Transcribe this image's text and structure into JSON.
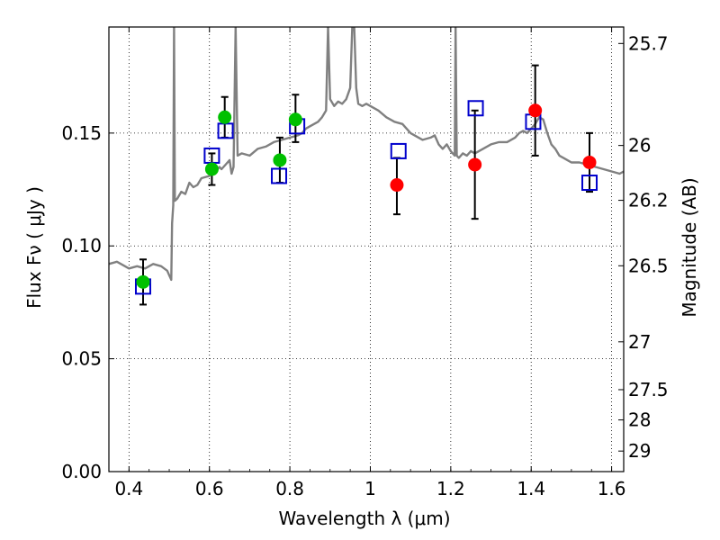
{
  "chart_data": {
    "type": "scatter",
    "title": "",
    "xlabel": "Wavelength  λ (μm)",
    "ylabel": "Flux  Fν  ( μJy )",
    "y2label": "Magnitude (AB)",
    "xlim": [
      0.35,
      1.63
    ],
    "ylim": [
      0.0,
      0.197
    ],
    "grid": true,
    "x_ticks": [
      0.4,
      0.6,
      0.8,
      1.0,
      1.2,
      1.4,
      1.6
    ],
    "x_tick_labels": [
      "0.4",
      "0.6",
      "0.8",
      "1",
      "1.2",
      "1.4",
      "1.6"
    ],
    "y_ticks": [
      0.0,
      0.05,
      0.1,
      0.15
    ],
    "y_tick_labels": [
      "0.00",
      "0.05",
      "0.10",
      "0.15"
    ],
    "y2_ticks": [
      {
        "label": "25.7",
        "flux": 0.1897
      },
      {
        "label": "26",
        "flux": 0.1445
      },
      {
        "label": "26.2",
        "flux": 0.1202
      },
      {
        "label": "26.5",
        "flux": 0.0912
      },
      {
        "label": "27",
        "flux": 0.0575
      },
      {
        "label": "27.5",
        "flux": 0.0363
      },
      {
        "label": "28",
        "flux": 0.0229
      },
      {
        "label": "29",
        "flux": 0.0091
      }
    ],
    "series": [
      {
        "marker": "circle",
        "color": "#00c000",
        "points": [
          {
            "x": 0.435,
            "y": 0.084,
            "yerr_low": 0.074,
            "yerr_high": 0.094
          },
          {
            "x": 0.606,
            "y": 0.134,
            "yerr_low": 0.127,
            "yerr_high": 0.141
          },
          {
            "x": 0.638,
            "y": 0.157,
            "yerr_low": 0.148,
            "yerr_high": 0.166
          },
          {
            "x": 0.775,
            "y": 0.138,
            "yerr_low": 0.128,
            "yerr_high": 0.148
          },
          {
            "x": 0.814,
            "y": 0.156,
            "yerr_low": 0.146,
            "yerr_high": 0.167
          }
        ]
      },
      {
        "marker": "circle",
        "color": "#ff0000",
        "points": [
          {
            "x": 1.066,
            "y": 0.127,
            "yerr_low": 0.114,
            "yerr_high": 0.139
          },
          {
            "x": 1.26,
            "y": 0.136,
            "yerr_low": 0.112,
            "yerr_high": 0.16
          },
          {
            "x": 1.41,
            "y": 0.16,
            "yerr_low": 0.14,
            "yerr_high": 0.18
          },
          {
            "x": 1.545,
            "y": 0.137,
            "yerr_low": 0.124,
            "yerr_high": 0.15
          }
        ]
      },
      {
        "marker": "open-square",
        "color": "#0000cc",
        "points": [
          {
            "x": 0.435,
            "y": 0.082
          },
          {
            "x": 0.606,
            "y": 0.14
          },
          {
            "x": 0.64,
            "y": 0.151
          },
          {
            "x": 0.773,
            "y": 0.131
          },
          {
            "x": 0.818,
            "y": 0.153
          },
          {
            "x": 1.07,
            "y": 0.142
          },
          {
            "x": 1.262,
            "y": 0.161
          },
          {
            "x": 1.405,
            "y": 0.155
          },
          {
            "x": 1.545,
            "y": 0.128
          }
        ]
      },
      {
        "marker": "line",
        "color": "#808080",
        "points": [
          [
            0.35,
            0.092
          ],
          [
            0.37,
            0.093
          ],
          [
            0.38,
            0.092
          ],
          [
            0.4,
            0.09
          ],
          [
            0.42,
            0.091
          ],
          [
            0.44,
            0.09
          ],
          [
            0.46,
            0.092
          ],
          [
            0.48,
            0.091
          ],
          [
            0.495,
            0.089
          ],
          [
            0.5,
            0.087
          ],
          [
            0.505,
            0.085
          ],
          [
            0.507,
            0.11
          ],
          [
            0.51,
            0.118
          ],
          [
            0.512,
            0.197
          ],
          [
            0.514,
            0.12
          ],
          [
            0.52,
            0.121
          ],
          [
            0.53,
            0.124
          ],
          [
            0.54,
            0.123
          ],
          [
            0.55,
            0.128
          ],
          [
            0.56,
            0.126
          ],
          [
            0.57,
            0.127
          ],
          [
            0.58,
            0.13
          ],
          [
            0.6,
            0.131
          ],
          [
            0.61,
            0.133
          ],
          [
            0.62,
            0.134
          ],
          [
            0.625,
            0.135
          ],
          [
            0.63,
            0.134
          ],
          [
            0.64,
            0.136
          ],
          [
            0.65,
            0.138
          ],
          [
            0.655,
            0.132
          ],
          [
            0.66,
            0.135
          ],
          [
            0.665,
            0.197
          ],
          [
            0.67,
            0.14
          ],
          [
            0.68,
            0.141
          ],
          [
            0.7,
            0.14
          ],
          [
            0.72,
            0.143
          ],
          [
            0.74,
            0.144
          ],
          [
            0.75,
            0.145
          ],
          [
            0.76,
            0.146
          ],
          [
            0.78,
            0.147
          ],
          [
            0.8,
            0.148
          ],
          [
            0.82,
            0.149
          ],
          [
            0.83,
            0.15
          ],
          [
            0.84,
            0.152
          ],
          [
            0.85,
            0.153
          ],
          [
            0.86,
            0.154
          ],
          [
            0.87,
            0.155
          ],
          [
            0.88,
            0.157
          ],
          [
            0.89,
            0.16
          ],
          [
            0.895,
            0.197
          ],
          [
            0.9,
            0.165
          ],
          [
            0.91,
            0.162
          ],
          [
            0.92,
            0.164
          ],
          [
            0.93,
            0.163
          ],
          [
            0.94,
            0.165
          ],
          [
            0.95,
            0.17
          ],
          [
            0.955,
            0.197
          ],
          [
            0.96,
            0.197
          ],
          [
            0.965,
            0.17
          ],
          [
            0.97,
            0.163
          ],
          [
            0.98,
            0.162
          ],
          [
            0.99,
            0.163
          ],
          [
            1.0,
            0.162
          ],
          [
            1.02,
            0.16
          ],
          [
            1.04,
            0.157
          ],
          [
            1.06,
            0.155
          ],
          [
            1.08,
            0.154
          ],
          [
            1.1,
            0.15
          ],
          [
            1.12,
            0.148
          ],
          [
            1.13,
            0.147
          ],
          [
            1.15,
            0.148
          ],
          [
            1.16,
            0.149
          ],
          [
            1.17,
            0.145
          ],
          [
            1.18,
            0.143
          ],
          [
            1.19,
            0.145
          ],
          [
            1.2,
            0.142
          ],
          [
            1.21,
            0.14
          ],
          [
            1.212,
            0.197
          ],
          [
            1.215,
            0.14
          ],
          [
            1.22,
            0.139
          ],
          [
            1.23,
            0.141
          ],
          [
            1.24,
            0.14
          ],
          [
            1.25,
            0.142
          ],
          [
            1.26,
            0.141
          ],
          [
            1.28,
            0.143
          ],
          [
            1.3,
            0.145
          ],
          [
            1.32,
            0.146
          ],
          [
            1.34,
            0.146
          ],
          [
            1.36,
            0.148
          ],
          [
            1.37,
            0.15
          ],
          [
            1.38,
            0.151
          ],
          [
            1.39,
            0.15
          ],
          [
            1.4,
            0.152
          ],
          [
            1.41,
            0.154
          ],
          [
            1.42,
            0.157
          ],
          [
            1.43,
            0.156
          ],
          [
            1.44,
            0.15
          ],
          [
            1.45,
            0.145
          ],
          [
            1.46,
            0.143
          ],
          [
            1.47,
            0.14
          ],
          [
            1.48,
            0.139
          ],
          [
            1.49,
            0.138
          ],
          [
            1.5,
            0.137
          ],
          [
            1.52,
            0.137
          ],
          [
            1.54,
            0.136
          ],
          [
            1.56,
            0.135
          ],
          [
            1.58,
            0.134
          ],
          [
            1.6,
            0.133
          ],
          [
            1.62,
            0.132
          ],
          [
            1.63,
            0.133
          ]
        ]
      }
    ]
  }
}
